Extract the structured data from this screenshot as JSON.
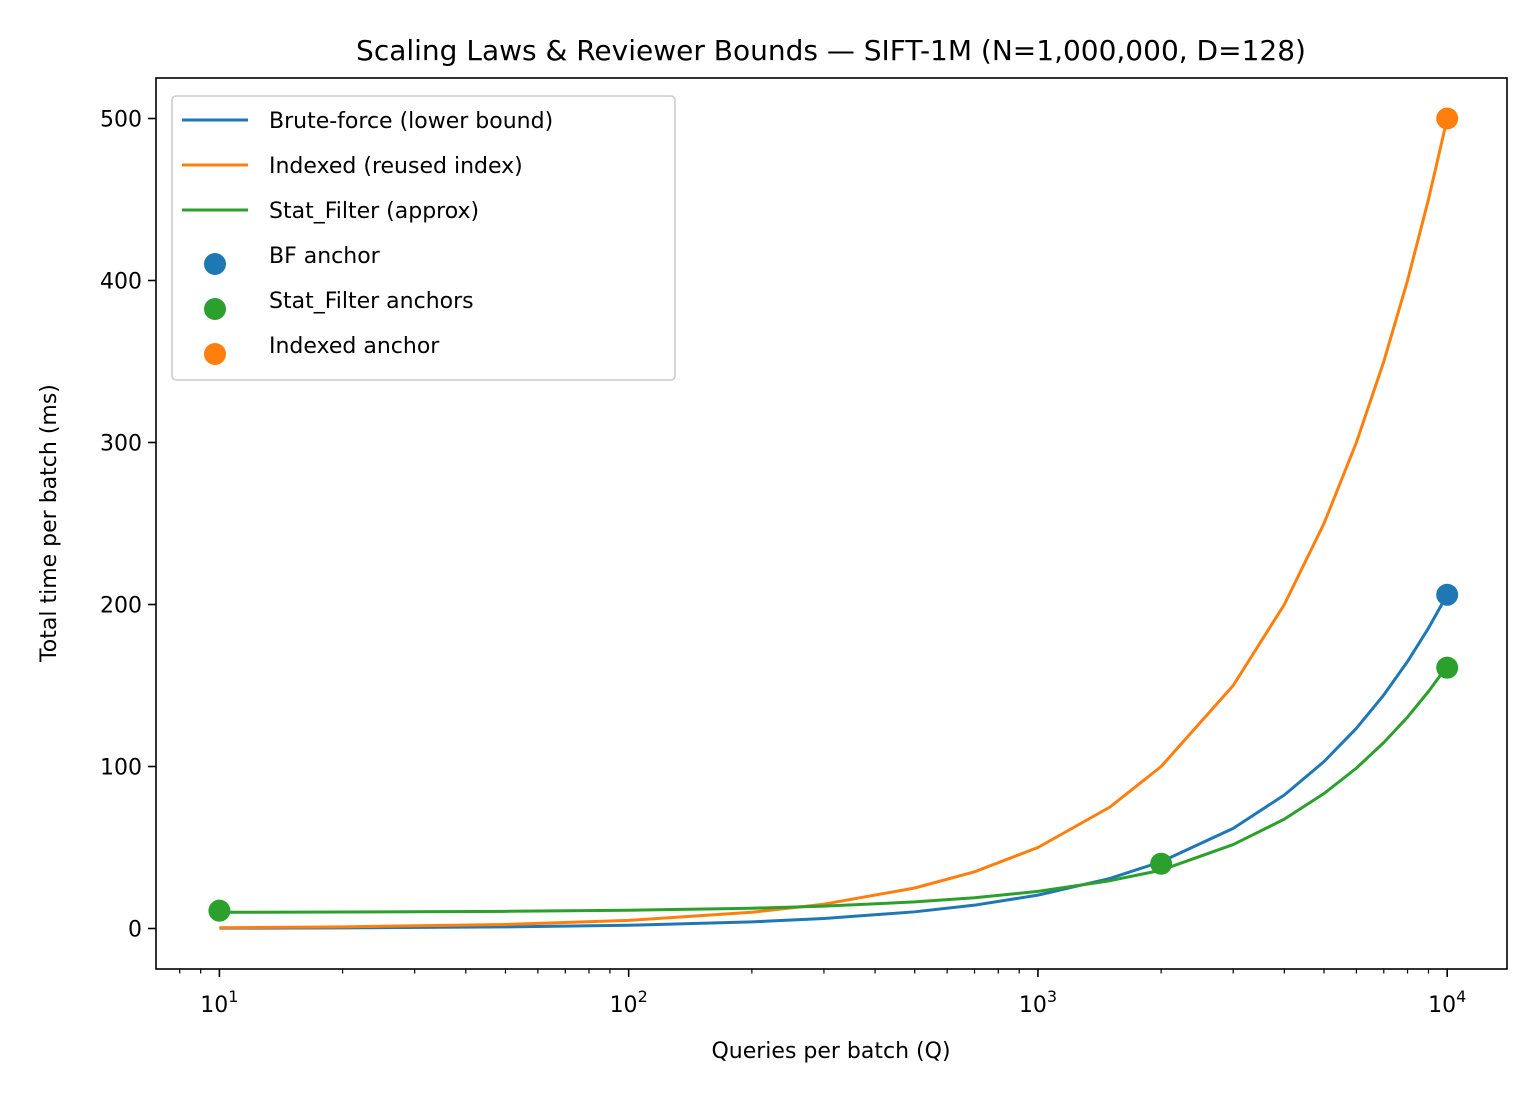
{
  "chart_data": {
    "type": "line",
    "title": "Scaling Laws & Reviewer Bounds — SIFT-1M (N=1,000,000, D=128)",
    "xlabel": "Queries per batch (Q)",
    "ylabel": "Total time per batch (ms)",
    "x_scale": "log",
    "xlim": [
      7,
      14000
    ],
    "ylim": [
      -25,
      525
    ],
    "x_ticks": [
      10,
      100,
      1000,
      10000
    ],
    "x_tick_labels": [
      {
        "base": "10",
        "exp": "1"
      },
      {
        "base": "10",
        "exp": "2"
      },
      {
        "base": "10",
        "exp": "3"
      },
      {
        "base": "10",
        "exp": "4"
      }
    ],
    "y_ticks": [
      0,
      100,
      200,
      300,
      400,
      500
    ],
    "grid": false,
    "legend_position": "top-left",
    "series": [
      {
        "name": "Brute-force (lower bound)",
        "kind": "line",
        "color": "#1f77b4",
        "x": [
          10,
          20,
          50,
          100,
          200,
          300,
          500,
          700,
          1000,
          1500,
          2000,
          3000,
          4000,
          5000,
          6000,
          7000,
          8000,
          9000,
          10000
        ],
        "y": [
          0.2,
          0.4,
          1.0,
          2.0,
          4.1,
          6.2,
          10.3,
          14.4,
          20.6,
          30.9,
          41.2,
          61.8,
          82.4,
          103.0,
          123.6,
          144.2,
          164.8,
          185.4,
          206.0
        ]
      },
      {
        "name": "Indexed (reused index)",
        "kind": "line",
        "color": "#ff7f0e",
        "x": [
          10,
          20,
          50,
          100,
          200,
          300,
          500,
          700,
          1000,
          1500,
          2000,
          3000,
          4000,
          5000,
          6000,
          7000,
          8000,
          9000,
          10000
        ],
        "y": [
          0.5,
          1.0,
          2.5,
          5.0,
          10.0,
          15.0,
          25.0,
          35.0,
          50.0,
          75.0,
          100.0,
          150.0,
          200.0,
          250.0,
          300.0,
          350.0,
          400.0,
          450.0,
          500.0
        ]
      },
      {
        "name": "Stat_Filter (approx)",
        "kind": "line",
        "color": "#2ca02c",
        "x": [
          10,
          20,
          50,
          100,
          200,
          300,
          500,
          700,
          1000,
          1500,
          2000,
          3000,
          4000,
          5000,
          6000,
          7000,
          8000,
          9000,
          10000
        ],
        "y": [
          10.0,
          10.2,
          10.6,
          11.3,
          12.5,
          13.8,
          16.4,
          19.0,
          22.9,
          29.5,
          36.0,
          51.8,
          67.5,
          83.3,
          99.0,
          114.8,
          130.5,
          146.3,
          162.0
        ]
      },
      {
        "name": "BF anchor",
        "kind": "scatter",
        "color": "#1f77b4",
        "x": [
          10000
        ],
        "y": [
          206
        ]
      },
      {
        "name": "Stat_Filter anchors",
        "kind": "scatter",
        "color": "#2ca02c",
        "x": [
          10,
          2000,
          10000
        ],
        "y": [
          11,
          40,
          161
        ]
      },
      {
        "name": "Indexed anchor",
        "kind": "scatter",
        "color": "#ff7f0e",
        "x": [
          10000
        ],
        "y": [
          500
        ]
      }
    ]
  }
}
